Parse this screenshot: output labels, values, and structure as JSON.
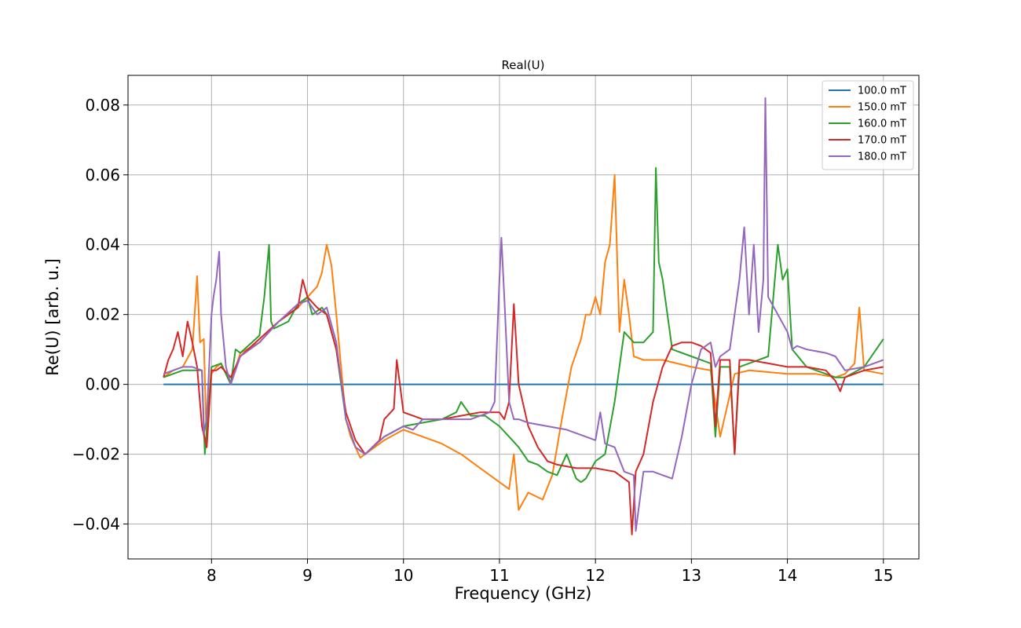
{
  "chart_data": {
    "type": "line",
    "title": "Real(U)",
    "xlabel": "Frequency (GHz)",
    "ylabel": "Re(U) [arb. u.]",
    "xlim": [
      7.13,
      15.37
    ],
    "ylim": [
      -0.05,
      0.0885
    ],
    "xticks": [
      8,
      9,
      10,
      11,
      12,
      13,
      14,
      15
    ],
    "xtick_labels": [
      "8",
      "9",
      "10",
      "11",
      "12",
      "13",
      "14",
      "15"
    ],
    "yticks": [
      -0.04,
      -0.02,
      0.0,
      0.02,
      0.04,
      0.06,
      0.08
    ],
    "ytick_labels": [
      "−0.04",
      "−0.02",
      "0.00",
      "0.02",
      "0.04",
      "0.06",
      "0.08"
    ],
    "grid": true,
    "legend_position": "top-right",
    "series": [
      {
        "name": "100.0 mT",
        "color": "#1f77b4",
        "x": [
          7.5,
          15.0
        ],
        "y": [
          0.0,
          0.0
        ]
      },
      {
        "name": "150.0 mT",
        "color": "#ff7f0e",
        "x": [
          7.5,
          7.6,
          7.7,
          7.8,
          7.85,
          7.88,
          7.92,
          7.95,
          8.0,
          8.05,
          8.1,
          8.2,
          8.3,
          8.5,
          8.7,
          8.9,
          9.0,
          9.1,
          9.15,
          9.2,
          9.25,
          9.3,
          9.35,
          9.4,
          9.45,
          9.5,
          9.55,
          9.6,
          9.8,
          10.0,
          10.2,
          10.4,
          10.6,
          10.8,
          11.0,
          11.1,
          11.15,
          11.2,
          11.3,
          11.45,
          11.55,
          11.65,
          11.75,
          11.85,
          11.9,
          11.95,
          12.0,
          12.05,
          12.1,
          12.15,
          12.2,
          12.25,
          12.3,
          12.35,
          12.4,
          12.5,
          12.7,
          13.0,
          13.2,
          13.3,
          13.45,
          13.6,
          14.0,
          14.3,
          14.5,
          14.6,
          14.7,
          14.75,
          14.8,
          15.0
        ],
        "y": [
          0.002,
          0.004,
          0.005,
          0.01,
          0.031,
          0.012,
          0.013,
          -0.018,
          0.003,
          0.005,
          0.006,
          0.0,
          0.009,
          0.012,
          0.018,
          0.022,
          0.025,
          0.028,
          0.032,
          0.04,
          0.034,
          0.02,
          0.005,
          -0.01,
          -0.015,
          -0.018,
          -0.021,
          -0.02,
          -0.016,
          -0.013,
          -0.015,
          -0.017,
          -0.02,
          -0.024,
          -0.028,
          -0.03,
          -0.02,
          -0.036,
          -0.031,
          -0.033,
          -0.026,
          -0.01,
          0.005,
          0.013,
          0.02,
          0.02,
          0.025,
          0.02,
          0.035,
          0.04,
          0.06,
          0.015,
          0.03,
          0.02,
          0.008,
          0.007,
          0.007,
          0.005,
          0.004,
          -0.015,
          0.003,
          0.004,
          0.003,
          0.003,
          0.002,
          0.003,
          0.006,
          0.022,
          0.004,
          0.003
        ]
      },
      {
        "name": "160.0 mT",
        "color": "#2ca02c",
        "x": [
          7.5,
          7.7,
          7.9,
          7.93,
          7.96,
          8.0,
          8.1,
          8.2,
          8.25,
          8.3,
          8.5,
          8.55,
          8.6,
          8.62,
          8.65,
          8.8,
          8.9,
          9.0,
          9.05,
          9.15,
          9.2,
          9.3,
          9.4,
          9.5,
          9.6,
          9.8,
          10.0,
          10.2,
          10.4,
          10.55,
          10.6,
          10.7,
          10.85,
          11.0,
          11.1,
          11.2,
          11.3,
          11.4,
          11.5,
          11.6,
          11.7,
          11.8,
          11.85,
          11.9,
          12.0,
          12.1,
          12.2,
          12.3,
          12.4,
          12.5,
          12.6,
          12.63,
          12.66,
          12.7,
          12.8,
          13.0,
          13.2,
          13.25,
          13.3,
          13.4,
          13.45,
          13.5,
          13.6,
          13.8,
          13.9,
          13.95,
          14.0,
          14.05,
          14.2,
          14.5,
          14.6,
          14.8,
          15.0
        ],
        "y": [
          0.002,
          0.004,
          0.004,
          -0.02,
          -0.01,
          0.005,
          0.006,
          0.0,
          0.01,
          0.009,
          0.014,
          0.025,
          0.04,
          0.018,
          0.016,
          0.018,
          0.023,
          0.025,
          0.02,
          0.022,
          0.02,
          0.01,
          -0.01,
          -0.018,
          -0.02,
          -0.015,
          -0.012,
          -0.011,
          -0.01,
          -0.008,
          -0.005,
          -0.009,
          -0.009,
          -0.012,
          -0.015,
          -0.018,
          -0.022,
          -0.023,
          -0.025,
          -0.026,
          -0.02,
          -0.027,
          -0.028,
          -0.027,
          -0.022,
          -0.02,
          -0.005,
          0.015,
          0.012,
          0.012,
          0.015,
          0.062,
          0.035,
          0.03,
          0.01,
          0.008,
          0.006,
          -0.015,
          0.005,
          0.005,
          -0.02,
          0.005,
          0.006,
          0.008,
          0.04,
          0.03,
          0.033,
          0.01,
          0.005,
          0.002,
          0.002,
          0.005,
          0.013
        ]
      },
      {
        "name": "170.0 mT",
        "color": "#d62728",
        "x": [
          7.5,
          7.55,
          7.6,
          7.65,
          7.7,
          7.75,
          7.8,
          7.85,
          7.9,
          7.95,
          8.0,
          8.05,
          8.1,
          8.2,
          8.3,
          8.5,
          8.7,
          8.9,
          8.95,
          9.0,
          9.1,
          9.2,
          9.3,
          9.4,
          9.5,
          9.6,
          9.75,
          9.8,
          9.9,
          9.93,
          10.0,
          10.2,
          10.4,
          10.6,
          10.8,
          11.0,
          11.05,
          11.1,
          11.15,
          11.2,
          11.3,
          11.4,
          11.5,
          11.6,
          11.8,
          12.0,
          12.2,
          12.35,
          12.38,
          12.42,
          12.5,
          12.6,
          12.7,
          12.8,
          12.9,
          13.0,
          13.1,
          13.2,
          13.25,
          13.3,
          13.4,
          13.45,
          13.5,
          13.6,
          13.8,
          14.0,
          14.2,
          14.4,
          14.5,
          14.55,
          14.6,
          14.8,
          15.0
        ],
        "y": [
          0.002,
          0.007,
          0.01,
          0.015,
          0.008,
          0.018,
          0.012,
          0.005,
          -0.012,
          -0.018,
          0.004,
          0.004,
          0.005,
          0.002,
          0.008,
          0.013,
          0.018,
          0.022,
          0.03,
          0.025,
          0.022,
          0.02,
          0.01,
          -0.008,
          -0.016,
          -0.02,
          -0.016,
          -0.01,
          -0.007,
          0.007,
          -0.008,
          -0.01,
          -0.01,
          -0.009,
          -0.008,
          -0.008,
          -0.01,
          -0.005,
          0.023,
          0.0,
          -0.012,
          -0.018,
          -0.022,
          -0.023,
          -0.024,
          -0.024,
          -0.025,
          -0.028,
          -0.043,
          -0.025,
          -0.02,
          -0.005,
          0.005,
          0.011,
          0.012,
          0.012,
          0.011,
          0.009,
          -0.012,
          0.007,
          0.007,
          -0.02,
          0.007,
          0.007,
          0.006,
          0.005,
          0.005,
          0.004,
          0.001,
          -0.002,
          0.002,
          0.004,
          0.005
        ]
      },
      {
        "name": "180.0 mT",
        "color": "#9467bd",
        "x": [
          7.5,
          7.7,
          7.8,
          7.9,
          7.92,
          7.95,
          8.0,
          8.02,
          8.05,
          8.08,
          8.1,
          8.15,
          8.2,
          8.3,
          8.5,
          8.7,
          8.9,
          9.0,
          9.05,
          9.1,
          9.2,
          9.3,
          9.4,
          9.5,
          9.6,
          9.8,
          10.0,
          10.1,
          10.2,
          10.3,
          10.5,
          10.7,
          10.9,
          10.95,
          11.0,
          11.02,
          11.05,
          11.1,
          11.15,
          11.2,
          11.3,
          11.5,
          11.7,
          11.9,
          12.0,
          12.05,
          12.1,
          12.2,
          12.3,
          12.4,
          12.42,
          12.5,
          12.6,
          12.7,
          12.8,
          12.9,
          13.0,
          13.1,
          13.2,
          13.25,
          13.3,
          13.4,
          13.5,
          13.55,
          13.6,
          13.65,
          13.7,
          13.75,
          13.77,
          13.8,
          13.9,
          14.0,
          14.05,
          14.1,
          14.2,
          14.4,
          14.5,
          14.6,
          14.8,
          15.0
        ],
        "y": [
          0.003,
          0.005,
          0.005,
          0.004,
          -0.014,
          -0.01,
          0.02,
          0.025,
          0.03,
          0.038,
          0.02,
          0.005,
          0.0,
          0.008,
          0.012,
          0.018,
          0.023,
          0.024,
          0.022,
          0.02,
          0.022,
          0.012,
          -0.01,
          -0.018,
          -0.02,
          -0.015,
          -0.012,
          -0.013,
          -0.01,
          -0.01,
          -0.01,
          -0.01,
          -0.008,
          -0.005,
          0.03,
          0.042,
          0.025,
          -0.005,
          -0.01,
          -0.01,
          -0.011,
          -0.012,
          -0.013,
          -0.015,
          -0.016,
          -0.008,
          -0.017,
          -0.018,
          -0.025,
          -0.026,
          -0.042,
          -0.025,
          -0.025,
          -0.026,
          -0.027,
          -0.015,
          0.0,
          0.01,
          0.012,
          0.005,
          0.008,
          0.01,
          0.03,
          0.045,
          0.02,
          0.04,
          0.015,
          0.03,
          0.082,
          0.025,
          0.02,
          0.015,
          0.01,
          0.011,
          0.01,
          0.009,
          0.008,
          0.004,
          0.005,
          0.007
        ]
      }
    ]
  }
}
